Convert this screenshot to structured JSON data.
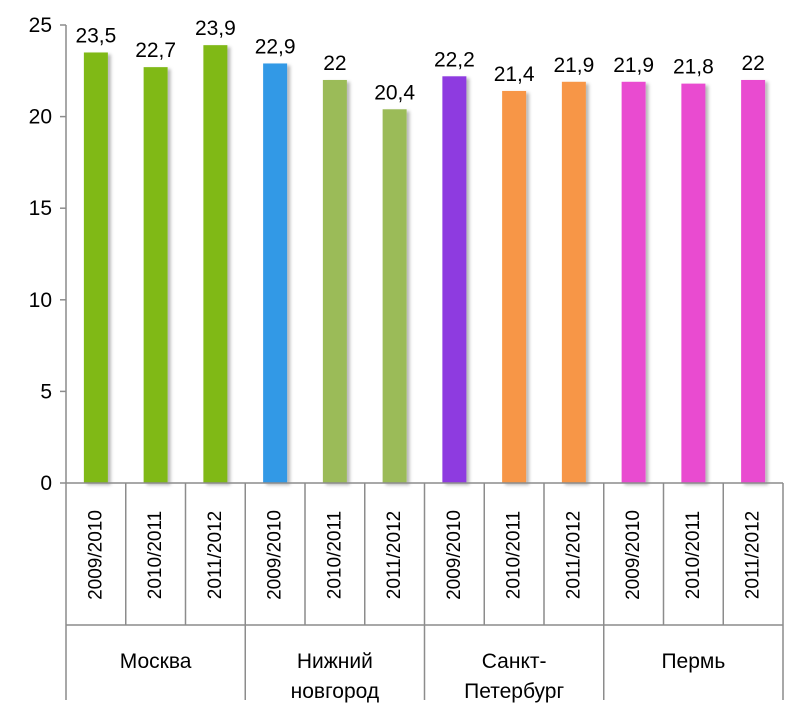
{
  "chart_data": {
    "type": "bar",
    "groups": [
      {
        "label_lines": [
          "Москва"
        ],
        "years": [
          "2009/2010",
          "2010/2011",
          "2011/2012"
        ],
        "values": [
          23.5,
          22.7,
          23.9
        ],
        "value_labels": [
          "23,5",
          "22,7",
          "23,9"
        ],
        "colors": [
          "#80b918",
          "#80b918",
          "#80b918"
        ]
      },
      {
        "label_lines": [
          "Нижний",
          "новгород"
        ],
        "years": [
          "2009/2010",
          "2010/2011",
          "2011/2012"
        ],
        "values": [
          22.9,
          22.0,
          20.4
        ],
        "value_labels": [
          "22,9",
          "22",
          "20,4"
        ],
        "colors": [
          "#3399e6",
          "#9bbb59",
          "#9bbb59"
        ]
      },
      {
        "label_lines": [
          "Санкт-",
          "Петербург"
        ],
        "years": [
          "2009/2010",
          "2010/2011",
          "2011/2012"
        ],
        "values": [
          22.2,
          21.4,
          21.9
        ],
        "value_labels": [
          "22,2",
          "21,4",
          "21,9"
        ],
        "colors": [
          "#8e3ae0",
          "#f79646",
          "#f79646"
        ]
      },
      {
        "label_lines": [
          "Пермь"
        ],
        "years": [
          "2009/2010",
          "2010/2011",
          "2011/2012"
        ],
        "values": [
          21.9,
          21.8,
          22.0
        ],
        "value_labels": [
          "21,9",
          "21,8",
          "22"
        ],
        "colors": [
          "#e94bd0",
          "#e94bd0",
          "#e94bd0"
        ]
      }
    ],
    "y_ticks": [
      "0",
      "5",
      "10",
      "15",
      "20",
      "25"
    ],
    "ylim": [
      0,
      25
    ],
    "grid": false,
    "legend": "none"
  }
}
